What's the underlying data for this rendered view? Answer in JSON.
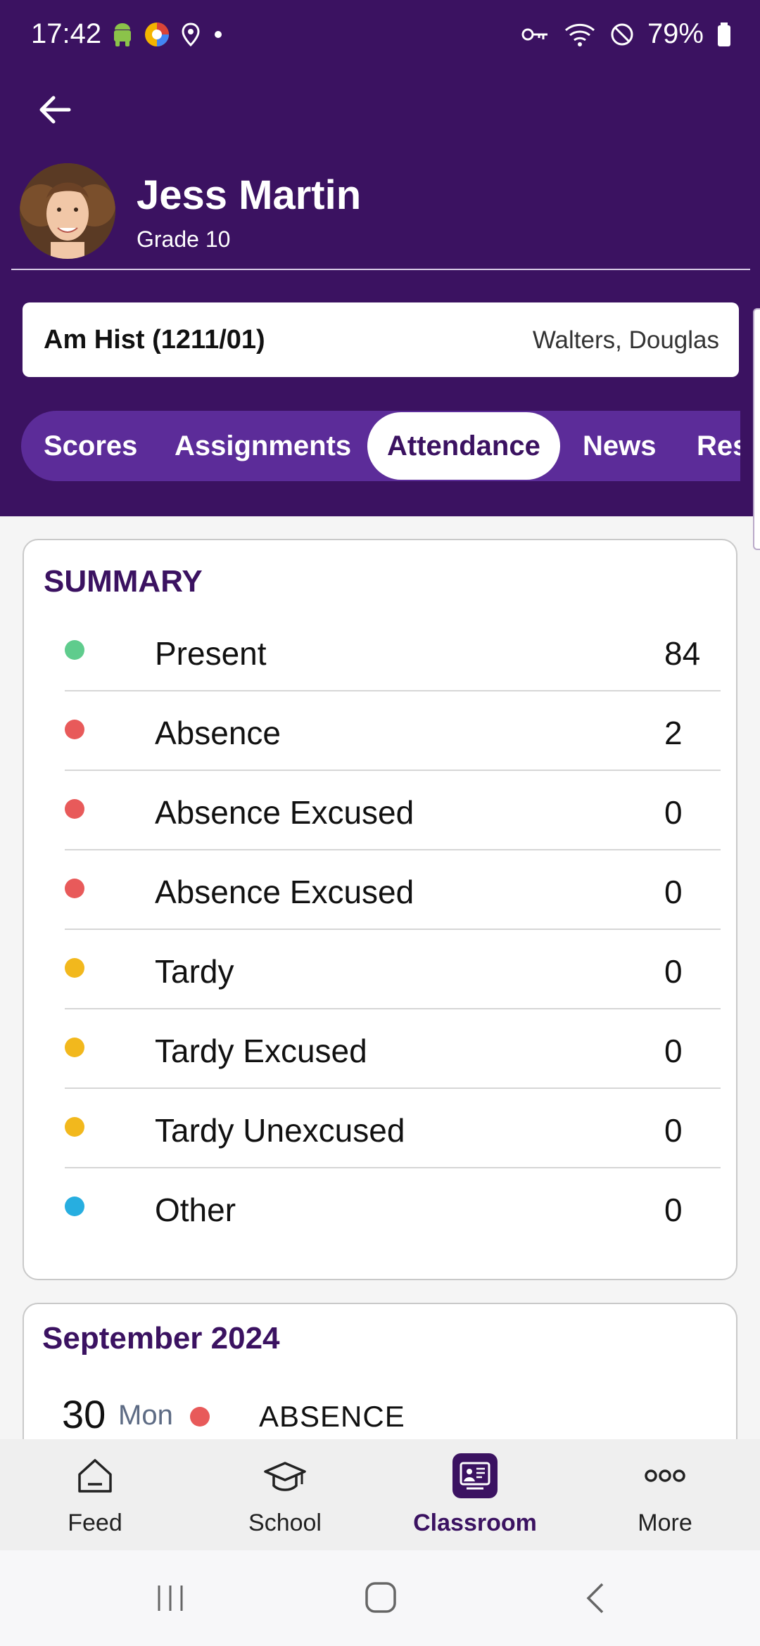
{
  "status_bar": {
    "time": "17:42",
    "battery": "79%"
  },
  "student": {
    "name": "Jess Martin",
    "grade": "Grade 10"
  },
  "class_info": {
    "name": "Am Hist (1211/01)",
    "teacher": "Walters, Douglas"
  },
  "tabs": [
    {
      "label": "Scores"
    },
    {
      "label": "Assignments"
    },
    {
      "label": "Attendance",
      "active": true
    },
    {
      "label": "News"
    },
    {
      "label": "Res"
    }
  ],
  "summary": {
    "title": "SUMMARY",
    "rows": [
      {
        "label": "Present",
        "count": "84",
        "color": "#5fcc8d"
      },
      {
        "label": "Absence",
        "count": "2",
        "color": "#e85a5a"
      },
      {
        "label": "Absence Excused",
        "count": "0",
        "color": "#e85a5a"
      },
      {
        "label": "Absence Excused",
        "count": "0",
        "color": "#e85a5a"
      },
      {
        "label": "Tardy",
        "count": "0",
        "color": "#f2b81d"
      },
      {
        "label": "Tardy Excused",
        "count": "0",
        "color": "#f2b81d"
      },
      {
        "label": "Tardy Unexcused",
        "count": "0",
        "color": "#f2b81d"
      },
      {
        "label": "Other",
        "count": "0",
        "color": "#27aee0"
      }
    ]
  },
  "month": {
    "title": "September 2024",
    "entry": {
      "day": "30",
      "dow": "Mon",
      "type": "ABSENCE",
      "color": "#e85a5a"
    }
  },
  "bottom_nav": [
    {
      "label": "Feed",
      "icon": "house-icon"
    },
    {
      "label": "School",
      "icon": "graduation-cap-icon"
    },
    {
      "label": "Classroom",
      "icon": "classroom-icon",
      "active": true
    },
    {
      "label": "More",
      "icon": "more-dots-icon"
    }
  ],
  "colors": {
    "header": "#3b1261",
    "tab_bar": "#5c2c99",
    "accent": "#3b1261"
  }
}
